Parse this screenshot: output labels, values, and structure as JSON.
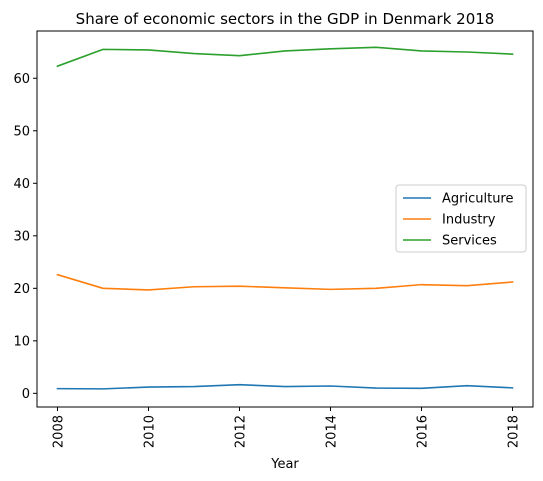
{
  "chart_data": {
    "type": "line",
    "title": "Share of economic sectors in the GDP in Denmark 2018",
    "xlabel": "Year",
    "ylabel": "",
    "x": [
      2008,
      2009,
      2010,
      2011,
      2012,
      2013,
      2014,
      2015,
      2016,
      2017,
      2018
    ],
    "xticks": [
      2008,
      2010,
      2012,
      2014,
      2016,
      2018
    ],
    "yticks": [
      0,
      10,
      20,
      30,
      40,
      50,
      60
    ],
    "xlim": [
      2007.55,
      2018.45
    ],
    "ylim": [
      -2.6,
      69.0
    ],
    "grid": false,
    "legend_position": "center-right",
    "series": [
      {
        "name": "Agriculture",
        "color": "#1f77b4",
        "values": [
          0.9,
          0.85,
          1.2,
          1.3,
          1.65,
          1.3,
          1.4,
          1.0,
          0.95,
          1.45,
          1.05
        ]
      },
      {
        "name": "Industry",
        "color": "#ff7f0e",
        "values": [
          22.6,
          20.0,
          19.7,
          20.3,
          20.4,
          20.1,
          19.8,
          20.0,
          20.7,
          20.5,
          21.2
        ]
      },
      {
        "name": "Services",
        "color": "#2ca02c",
        "values": [
          62.3,
          65.5,
          65.4,
          64.7,
          64.3,
          65.2,
          65.6,
          65.9,
          65.2,
          65.0,
          64.6
        ]
      }
    ]
  }
}
